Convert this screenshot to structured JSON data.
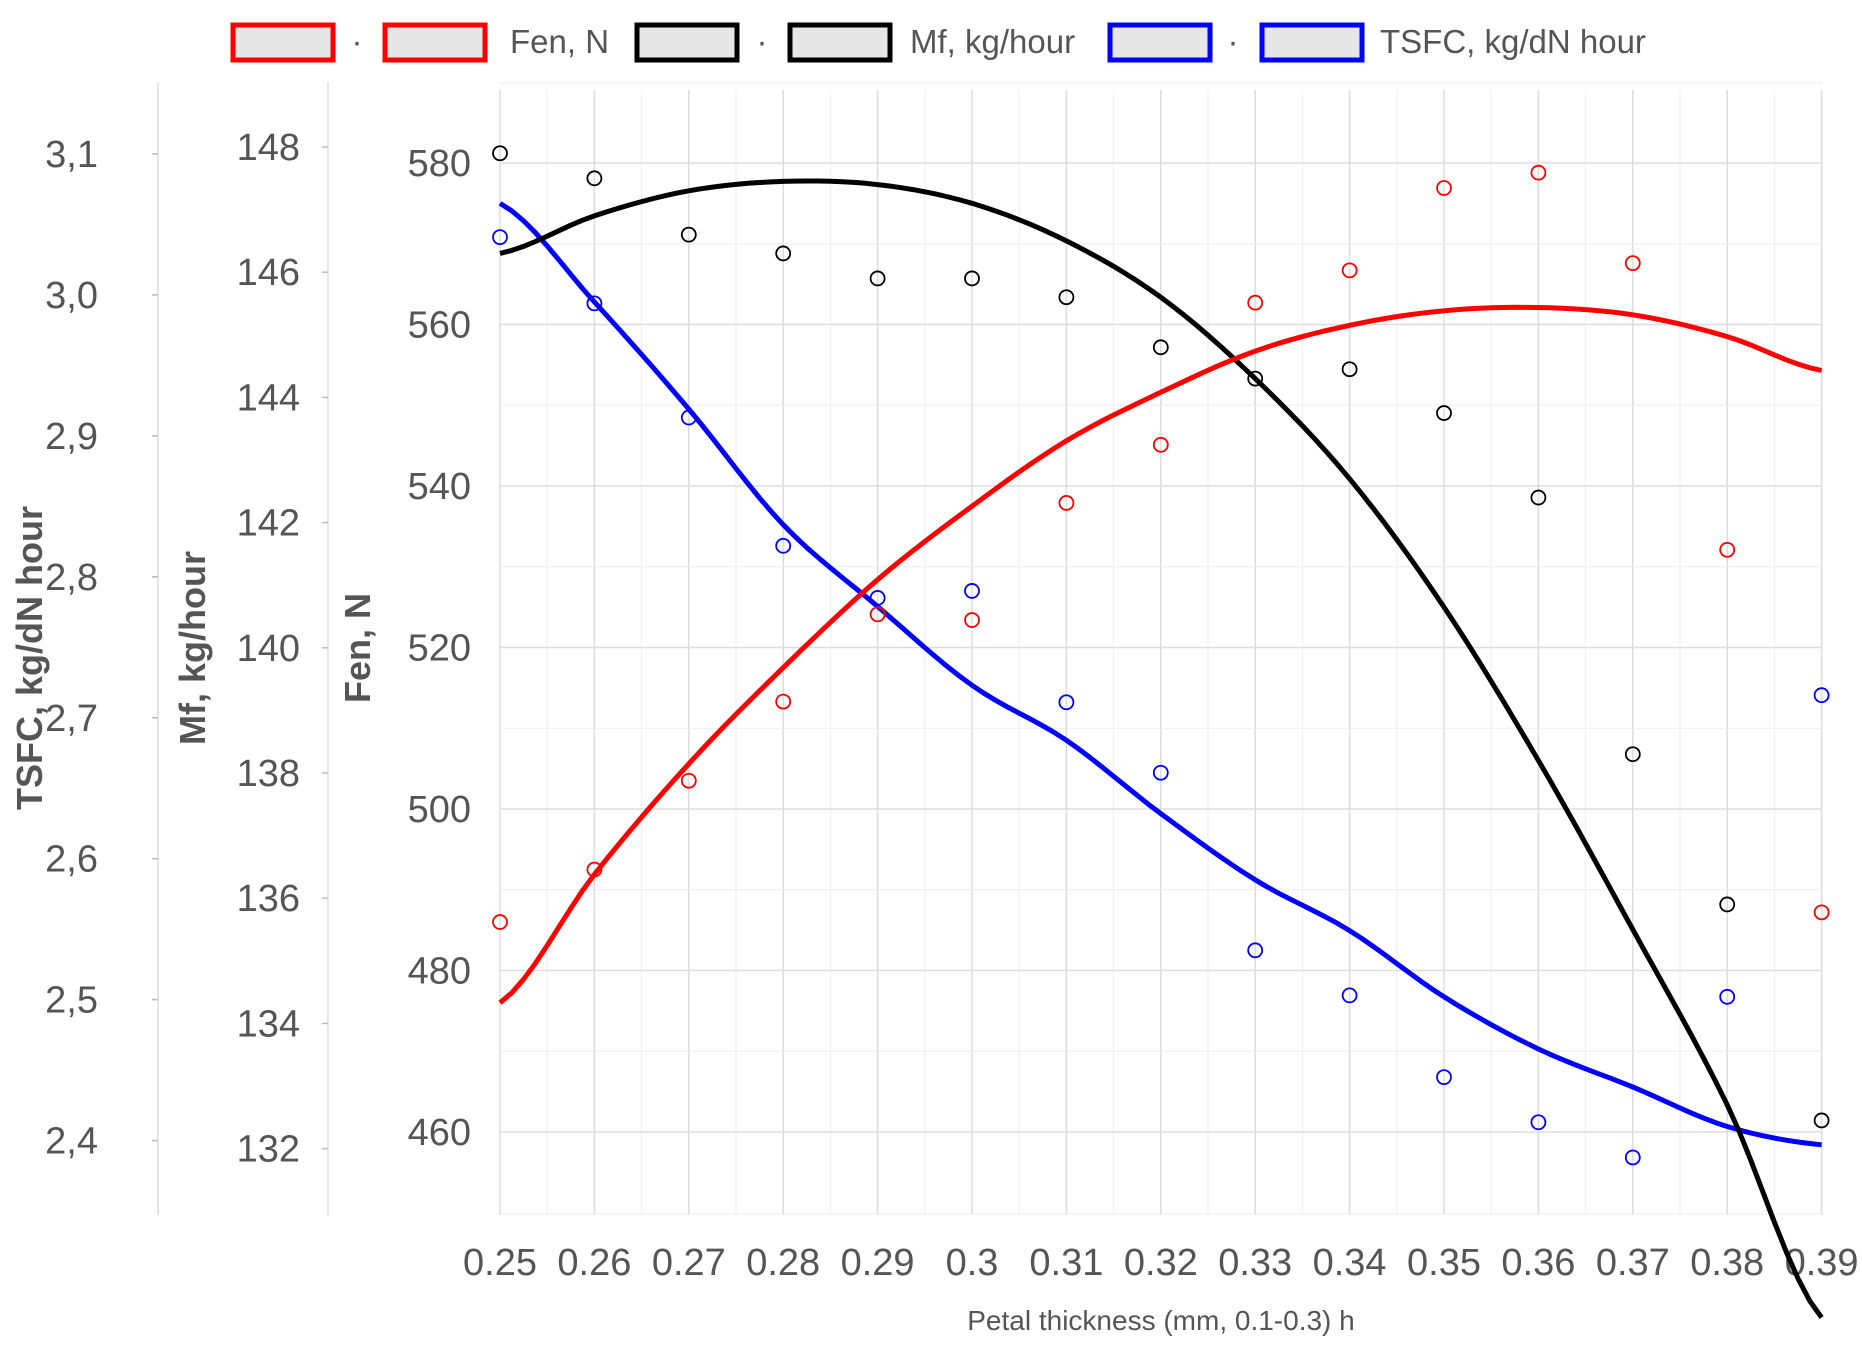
{
  "chart_data": {
    "type": "scatter",
    "xlabel": "Petal thickness (mm, 0.1-0.3) h",
    "x": [
      0.25,
      0.26,
      0.27,
      0.28,
      0.29,
      0.3,
      0.31,
      0.32,
      0.33,
      0.34,
      0.35,
      0.36,
      0.37,
      0.38,
      0.39
    ],
    "x_tick_labels": [
      "0.25",
      "0.26",
      "0.27",
      "0.28",
      "0.29",
      "0.3",
      "0.31",
      "0.32",
      "0.33",
      "0.34",
      "0.35",
      "0.36",
      "0.37",
      "0.38",
      "0.39"
    ],
    "grid": true,
    "legend_position": "top",
    "series": [
      {
        "name": "Fen, N",
        "axis": "Fen, N",
        "color": "#ff0000",
        "points": [
          486,
          492.5,
          503.5,
          513.3,
          524.1,
          523.4,
          537.9,
          545.1,
          562.7,
          566.7,
          576.9,
          578.8,
          567.6,
          532.1,
          487.2
        ],
        "fit": [
          476,
          491.9,
          505.6,
          517.5,
          528.4,
          537.5,
          545.6,
          551.6,
          556.7,
          559.9,
          561.7,
          562.1,
          561.2,
          558.5,
          554.3
        ]
      },
      {
        "name": "Mf, kg/hour",
        "axis": "Mf, kg/hour",
        "color": "#000000",
        "points": [
          147.9,
          147.5,
          146.6,
          146.3,
          145.9,
          145.9,
          145.6,
          144.8,
          144.3,
          144.45,
          143.75,
          142.4,
          138.3,
          135.9,
          132.45
        ],
        "fit": [
          146.3,
          146.9,
          147.3,
          147.45,
          147.4,
          147.1,
          146.5,
          145.6,
          144.3,
          142.7,
          140.65,
          138.2,
          135.5,
          132.7,
          129.3
        ]
      },
      {
        "name": "TSFC, kg/dN hour",
        "axis": "TSFC, kg/dN hour",
        "color": "#0000ff",
        "points": [
          3.041,
          2.994,
          2.913,
          2.822,
          2.785,
          2.79,
          2.711,
          2.661,
          2.535,
          2.503,
          2.445,
          2.413,
          2.388,
          2.502,
          2.716
        ],
        "fit": [
          3.065,
          2.995,
          2.919,
          2.837,
          2.779,
          2.723,
          2.684,
          2.632,
          2.585,
          2.549,
          2.502,
          2.465,
          2.438,
          2.41,
          2.397
        ]
      }
    ],
    "y_axes": [
      {
        "title": "TSFC, kg/dN hour",
        "ylim": [
          2.35,
          3.11
        ],
        "ticks": [
          3.1,
          3.0,
          2.9,
          2.8,
          2.7,
          2.6,
          2.5,
          2.4
        ],
        "tick_labels": [
          "3,1",
          "3,0",
          "2,9",
          "2,8",
          "2,7",
          "2,6",
          "2,5",
          "2,4"
        ]
      },
      {
        "title": "Mf, kg/hour",
        "ylim": [
          130.9,
          148.0
        ],
        "ticks": [
          148,
          146,
          144,
          142,
          140,
          138,
          136,
          134,
          132
        ],
        "tick_labels": [
          "148",
          "146",
          "144",
          "142",
          "140",
          "138",
          "136",
          "134",
          "132"
        ]
      },
      {
        "title": "Fen, N",
        "ylim": [
          450,
          580
        ],
        "ticks": [
          580,
          560,
          540,
          520,
          500,
          480,
          460
        ],
        "tick_labels": [
          "580",
          "560",
          "540",
          "520",
          "500",
          "480",
          "460"
        ]
      }
    ],
    "legend": [
      {
        "label": "·",
        "color": "#ff0000"
      },
      {
        "label": "Fen, N",
        "color": "#ff0000"
      },
      {
        "label": "·",
        "color": "#000000"
      },
      {
        "label": "Mf, kg/hour",
        "color": "#000000"
      },
      {
        "label": "·",
        "color": "#0000ff"
      },
      {
        "label": "TSFC, kg/dN hour",
        "color": "#0000ff"
      }
    ]
  }
}
